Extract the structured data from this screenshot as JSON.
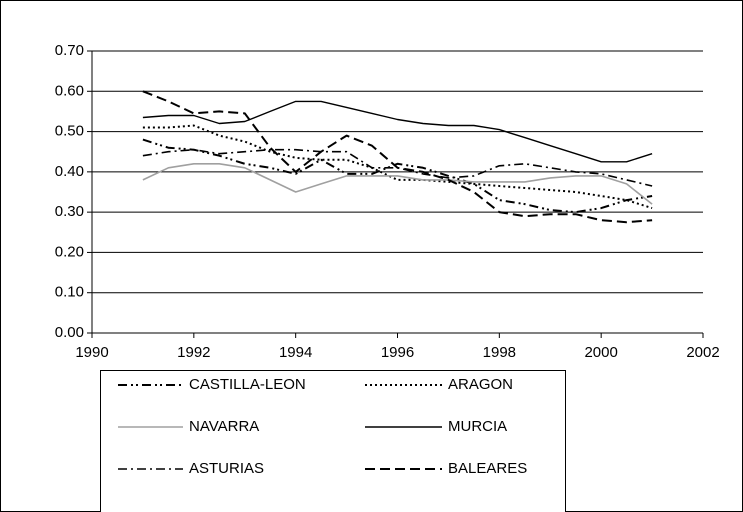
{
  "chart_data": {
    "type": "line",
    "x": [
      1991,
      1991.5,
      1992,
      1992.5,
      1993,
      1993.5,
      1994,
      1994.5,
      1995,
      1995.5,
      1996,
      1996.5,
      1997,
      1997.5,
      1998,
      1998.5,
      1999,
      1999.5,
      2000,
      2000.5,
      2001
    ],
    "series": [
      {
        "name": "CASTILLA-LEON",
        "color": "#000000",
        "values": [
          0.48,
          0.46,
          0.455,
          0.44,
          0.42,
          0.41,
          0.395,
          0.43,
          0.395,
          0.395,
          0.42,
          0.41,
          0.39,
          0.37,
          0.33,
          0.32,
          0.305,
          0.3,
          0.31,
          0.33,
          0.34
        ]
      },
      {
        "name": "ARAGON",
        "color": "#000000",
        "values": [
          0.51,
          0.51,
          0.515,
          0.49,
          0.475,
          0.45,
          0.435,
          0.43,
          0.43,
          0.41,
          0.38,
          0.38,
          0.375,
          0.37,
          0.365,
          0.36,
          0.355,
          0.35,
          0.34,
          0.33,
          0.31
        ]
      },
      {
        "name": "NAVARRA",
        "color": "#a0a0a0",
        "values": [
          0.38,
          0.41,
          0.42,
          0.42,
          0.41,
          0.38,
          0.35,
          0.37,
          0.39,
          0.39,
          0.39,
          0.38,
          0.38,
          0.375,
          0.375,
          0.375,
          0.385,
          0.39,
          0.39,
          0.37,
          0.32
        ]
      },
      {
        "name": "MURCIA",
        "color": "#000000",
        "values": [
          0.535,
          0.54,
          0.54,
          0.52,
          0.525,
          0.55,
          0.575,
          0.575,
          0.56,
          0.545,
          0.53,
          0.52,
          0.515,
          0.515,
          0.505,
          0.485,
          0.465,
          0.445,
          0.425,
          0.425,
          0.445
        ]
      },
      {
        "name": "ASTURIAS",
        "color": "#000000",
        "values": [
          0.44,
          0.45,
          0.455,
          0.445,
          0.45,
          0.455,
          0.455,
          0.45,
          0.45,
          0.41,
          0.41,
          0.395,
          0.385,
          0.39,
          0.415,
          0.42,
          0.41,
          0.4,
          0.395,
          0.38,
          0.365
        ]
      },
      {
        "name": "BALEARES",
        "color": "#000000",
        "values": [
          0.6,
          0.575,
          0.545,
          0.55,
          0.545,
          0.46,
          0.4,
          0.45,
          0.49,
          0.465,
          0.41,
          0.4,
          0.38,
          0.35,
          0.3,
          0.29,
          0.295,
          0.295,
          0.28,
          0.275,
          0.28
        ]
      }
    ],
    "xlim": [
      1990,
      2002
    ],
    "xticks": [
      1990,
      1992,
      1994,
      1996,
      1998,
      2000,
      2002
    ],
    "ylim": [
      0,
      0.7
    ],
    "yticks": [
      {
        "value": 0,
        "label": "0.00"
      },
      {
        "value": 0.1,
        "label": "0.10"
      },
      {
        "value": 0.2,
        "label": "0.20"
      },
      {
        "value": 0.3,
        "label": "0.30"
      },
      {
        "value": 0.4,
        "label": "0.40"
      },
      {
        "value": 0.5,
        "label": "0.50"
      },
      {
        "value": 0.6,
        "label": "0.60"
      },
      {
        "value": 0.7,
        "label": "0.70"
      }
    ],
    "grid": true
  }
}
